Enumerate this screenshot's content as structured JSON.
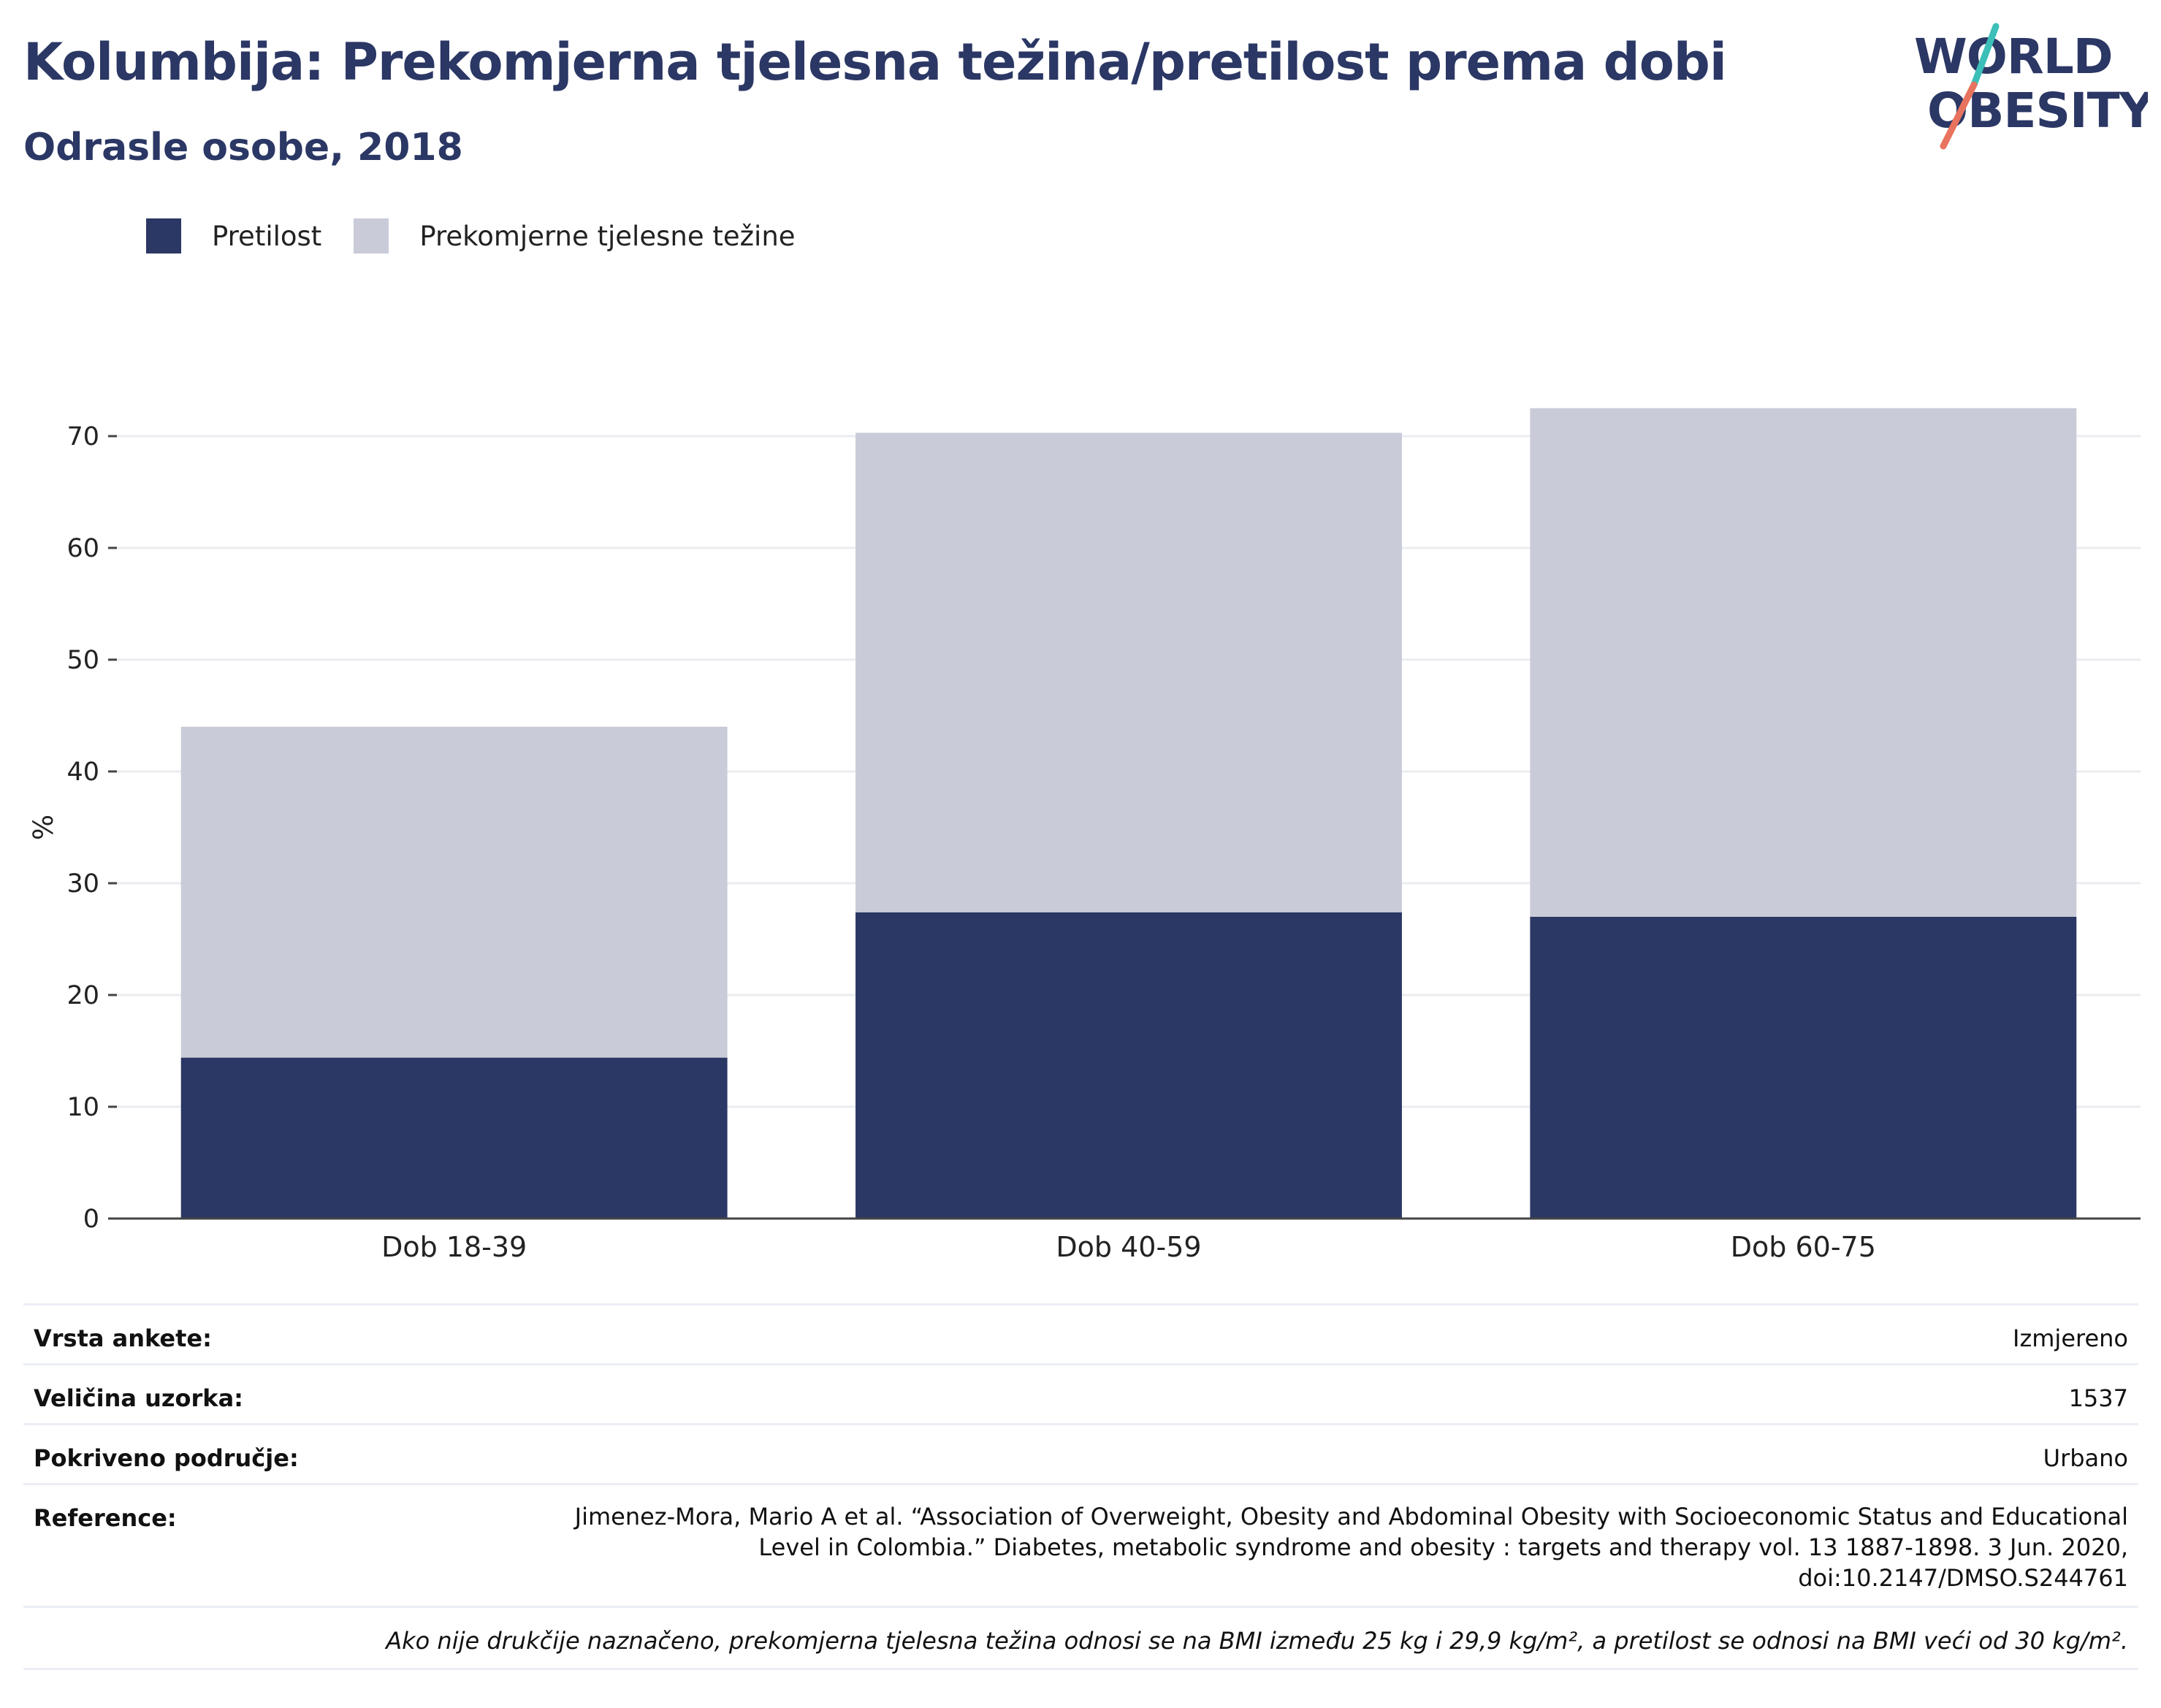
{
  "header": {
    "title": "Kolumbija: Prekomjerna tjelesna težina/pretilost prema dobi",
    "subtitle": "Odrasle osobe, 2018"
  },
  "logo": {
    "line1": "WORLD",
    "line2": "OBESITY",
    "colors": {
      "text": "#2b3764",
      "slash_top": "#3bbfb8",
      "slash_bottom": "#e8735f"
    }
  },
  "legend": [
    {
      "label": "Pretilost",
      "color": "#2b3764"
    },
    {
      "label": "Prekomjerne tjelesne težine",
      "color": "#c9cbd8"
    }
  ],
  "chart_data": {
    "type": "bar",
    "stacked": true,
    "categories": [
      "Dob 18-39",
      "Dob 40-59",
      "Dob 60-75"
    ],
    "series": [
      {
        "name": "Pretilost",
        "values": [
          14.4,
          27.4,
          27.0
        ],
        "color": "#2b3764"
      },
      {
        "name": "Prekomjerne tjelesne težine",
        "values": [
          29.6,
          42.9,
          45.5
        ],
        "color": "#c9cbd8"
      }
    ],
    "ylabel": "%",
    "xlabel": "",
    "ylim": [
      0,
      75
    ],
    "yticks": [
      0,
      10,
      20,
      30,
      40,
      50,
      60,
      70
    ],
    "grid": true,
    "legend_position": "top-left"
  },
  "meta": {
    "survey_type_label": "Vrsta ankete:",
    "survey_type_value": "Izmjereno",
    "sample_size_label": "Veličina uzorka:",
    "sample_size_value": "1537",
    "coverage_label": "Pokriveno područje:",
    "coverage_value": "Urbano",
    "reference_label": "Reference:",
    "reference_value": "Jimenez-Mora, Mario A et al. “Association of Overweight, Obesity and Abdominal Obesity with Socioeconomic Status and Educational Level in Colombia.” Diabetes, metabolic syndrome and obesity : targets and therapy vol. 13 1887-1898. 3 Jun. 2020, doi:10.2147/DMSO.S244761",
    "footnote": "Ako nije drukčije naznačeno, prekomjerna tjelesna težina odnosi se na BMI između 25 kg i 29,9 kg/m², a pretilost se odnosi na BMI veći od 30 kg/m²."
  }
}
